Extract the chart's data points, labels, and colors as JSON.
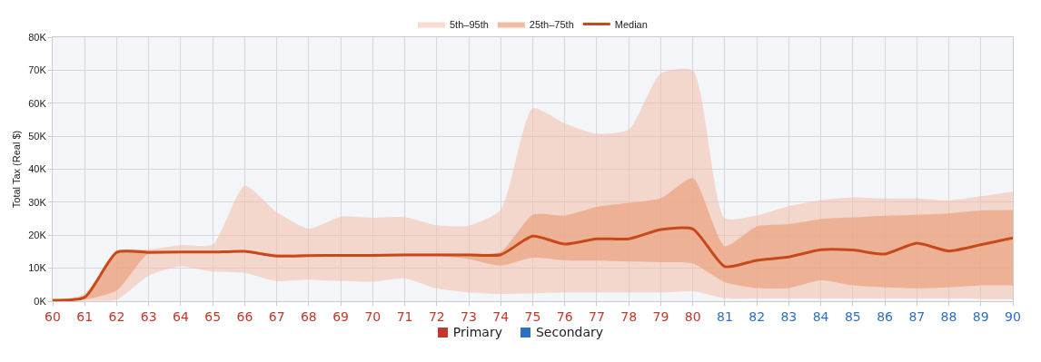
{
  "chart_data": {
    "type": "area",
    "ylabel": "Total Tax (Real $)",
    "x": [
      60,
      61,
      62,
      63,
      64,
      65,
      66,
      67,
      68,
      69,
      70,
      71,
      72,
      73,
      74,
      75,
      76,
      77,
      78,
      79,
      80,
      81,
      82,
      83,
      84,
      85,
      86,
      87,
      88,
      89,
      90
    ],
    "series": [
      {
        "name": "5th–95th",
        "color": "#f4b9a0",
        "values": [
          null,
          null,
          null,
          null,
          null,
          null,
          null,
          null,
          null,
          null,
          null,
          null,
          null,
          null,
          null,
          null,
          null,
          null,
          null,
          null,
          null,
          null,
          null,
          null,
          null,
          null,
          null,
          null,
          null,
          null,
          null
        ],
        "lower": [
          200,
          200,
          500,
          7800,
          10600,
          9000,
          8600,
          6100,
          6500,
          6100,
          5900,
          6900,
          3900,
          2700,
          2200,
          2400,
          2600,
          2600,
          2600,
          2600,
          3000,
          900,
          800,
          800,
          800,
          800,
          800,
          800,
          800,
          700,
          600
        ],
        "upper": [
          300,
          2300,
          15000,
          15700,
          17000,
          17200,
          35000,
          27000,
          22000,
          25600,
          25300,
          25500,
          23000,
          22900,
          27700,
          58400,
          53900,
          50700,
          52000,
          69000,
          69900,
          25200,
          26000,
          28800,
          30600,
          31500,
          31100,
          31100,
          30500,
          31800,
          33200
        ]
      },
      {
        "name": "25th–75th",
        "color": "#eba584",
        "values": [
          null,
          null,
          null,
          null,
          null,
          null,
          null,
          null,
          null,
          null,
          null,
          null,
          null,
          null,
          null,
          null,
          null,
          null,
          null,
          null,
          null,
          null,
          null,
          null,
          null,
          null,
          null,
          null,
          null,
          null,
          null
        ],
        "lower": [
          100,
          500,
          3200,
          14500,
          14800,
          14800,
          14800,
          13400,
          13500,
          13600,
          13700,
          13800,
          13800,
          12800,
          10800,
          13200,
          12400,
          12300,
          12000,
          11800,
          11400,
          5800,
          4000,
          4000,
          6300,
          4800,
          4200,
          3900,
          4200,
          4800,
          4800
        ],
        "upper": [
          300,
          1500,
          15200,
          15300,
          15200,
          15200,
          15400,
          14200,
          14200,
          14300,
          14300,
          14400,
          14400,
          14400,
          15000,
          26200,
          26000,
          28600,
          29800,
          31200,
          37300,
          16700,
          22700,
          23400,
          24900,
          25400,
          25900,
          26200,
          26600,
          27500,
          27600
        ]
      },
      {
        "name": "Median",
        "type": "line",
        "color": "#c9481a",
        "values": [
          300,
          1200,
          14800,
          14800,
          14900,
          14900,
          15100,
          13700,
          13800,
          13900,
          13900,
          14000,
          14000,
          14000,
          14100,
          19700,
          17300,
          18900,
          18900,
          21700,
          21900,
          10500,
          12400,
          13400,
          15600,
          15500,
          14300,
          17600,
          15200,
          17100,
          19200
        ]
      }
    ],
    "xlim": [
      60,
      90
    ],
    "xticks": [
      60,
      61,
      62,
      63,
      64,
      65,
      66,
      67,
      68,
      69,
      70,
      71,
      72,
      73,
      74,
      75,
      76,
      77,
      78,
      79,
      80,
      81,
      82,
      83,
      84,
      85,
      86,
      87,
      88,
      89,
      90
    ],
    "ylim": [
      0,
      80000
    ],
    "yticks": [
      {
        "value": 0,
        "label": "0K"
      },
      {
        "value": 10000,
        "label": "10K"
      },
      {
        "value": 20000,
        "label": "20K"
      },
      {
        "value": 30000,
        "label": "30K"
      },
      {
        "value": 40000,
        "label": "40K"
      },
      {
        "value": 50000,
        "label": "50K"
      },
      {
        "value": 60000,
        "label": "60K"
      },
      {
        "value": 70000,
        "label": "70K"
      },
      {
        "value": 80000,
        "label": "80K"
      }
    ],
    "grid": true,
    "legend": "top",
    "marker": "none",
    "annotations": [
      "Primary",
      "Secondary"
    ]
  }
}
